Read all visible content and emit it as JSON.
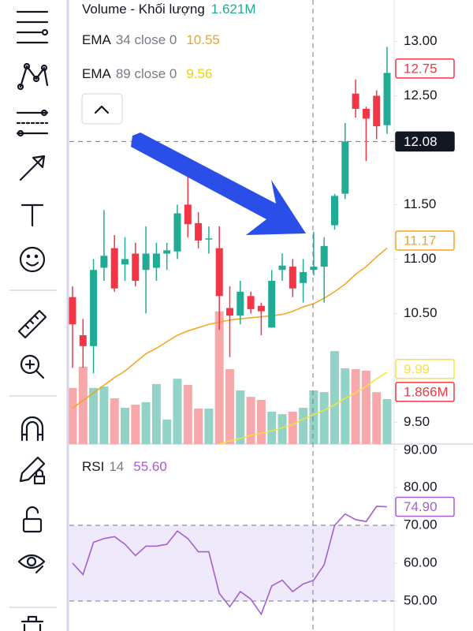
{
  "legend": {
    "volume": {
      "name": "Volume - Khối lượng",
      "value": "1.621M"
    },
    "ema34": {
      "name": "EMA",
      "params": "34 close 0",
      "value": "10.55"
    },
    "ema89": {
      "name": "EMA",
      "params": "89 close 0",
      "value": "9.56"
    },
    "rsi": {
      "name": "RSI",
      "params": "14",
      "value": "55.60"
    }
  },
  "chart_data": {
    "type": "candlestick",
    "up_color": "#22ab94",
    "down_color": "#f23645",
    "volume_up_color": "#93d2c6",
    "volume_down_color": "#f7a8ab",
    "open": [
      10.65,
      10.3,
      10.2,
      10.92,
      11.1,
      10.95,
      11.05,
      10.9,
      10.92,
      11.05,
      11.07,
      11.5,
      11.33,
      11.18,
      11.1,
      10.55,
      10.48,
      10.66,
      10.57,
      10.37,
      10.9,
      10.93,
      10.78,
      10.9,
      10.93,
      11.31,
      11.6,
      12.52,
      12.38,
      12.5,
      12.23
    ],
    "high": [
      10.75,
      10.45,
      11.0,
      11.45,
      11.22,
      11.2,
      11.15,
      11.3,
      11.15,
      11.15,
      11.5,
      11.92,
      11.43,
      11.3,
      11.3,
      10.75,
      10.8,
      10.7,
      10.6,
      10.9,
      11.05,
      11.0,
      11.0,
      11.25,
      11.2,
      11.6,
      12.25,
      12.65,
      12.4,
      12.55,
      12.95
    ],
    "low": [
      10.0,
      10.0,
      9.95,
      10.8,
      10.7,
      10.8,
      10.75,
      10.5,
      10.8,
      10.9,
      11.0,
      11.2,
      11.1,
      11.05,
      10.35,
      10.1,
      10.4,
      10.5,
      10.3,
      10.37,
      10.8,
      10.65,
      10.6,
      10.85,
      10.6,
      11.27,
      11.55,
      12.3,
      11.9,
      12.1,
      12.15
    ],
    "close": [
      10.4,
      10.2,
      10.9,
      11.03,
      10.73,
      11.0,
      10.8,
      11.05,
      11.05,
      11.08,
      11.42,
      11.32,
      11.17,
      11.19,
      10.66,
      10.48,
      10.7,
      10.54,
      10.52,
      10.8,
      10.94,
      10.73,
      10.88,
      10.93,
      11.12,
      11.58,
      12.08,
      12.38,
      12.29,
      12.22,
      12.71
    ],
    "volume": [
      2.01,
      2.77,
      2.01,
      2.06,
      1.64,
      1.3,
      1.41,
      1.5,
      2.15,
      0.88,
      2.34,
      2.12,
      1.27,
      1.27,
      4.75,
      2.68,
      1.92,
      1.69,
      1.58,
      1.16,
      1.07,
      1.16,
      1.3,
      1.92,
      1.86,
      3.33,
      2.71,
      2.68,
      2.63,
      1.86,
      1.61
    ],
    "ema_series": [
      {
        "name": "EMA 34",
        "color": "#f7a21b",
        "values": [
          9.63,
          9.7,
          9.77,
          9.84,
          9.91,
          9.97,
          10.05,
          10.13,
          10.18,
          10.24,
          10.3,
          10.34,
          10.37,
          10.4,
          10.42,
          10.44,
          10.45,
          10.46,
          10.47,
          10.48,
          10.49,
          10.52,
          10.56,
          10.59,
          10.64,
          10.7,
          10.77,
          10.86,
          10.93,
          11.02,
          11.1
        ]
      },
      {
        "name": "EMA 89",
        "color": "#f5e33a",
        "values": [
          null,
          null,
          null,
          null,
          null,
          null,
          null,
          null,
          null,
          null,
          null,
          null,
          null,
          null,
          9.3,
          9.33,
          9.35,
          9.38,
          9.4,
          9.42,
          9.45,
          9.48,
          9.53,
          9.57,
          9.61,
          9.66,
          9.72,
          9.77,
          9.83,
          9.9,
          9.96
        ]
      }
    ],
    "ylim": [
      9.3,
      13.38
    ],
    "yticks": [
      {
        "value": 13,
        "label": "13.00"
      },
      {
        "value": 12.5,
        "label": "12.50"
      },
      {
        "value": 11.5,
        "label": "11.50"
      },
      {
        "value": 11,
        "label": "11.00"
      },
      {
        "value": 10.5,
        "label": "10.50"
      },
      {
        "value": 9.5,
        "label": "9.50"
      }
    ],
    "volume_lim": [
      0,
      15.9
    ],
    "price_markers": [
      {
        "value": 12.75,
        "label": "12.75",
        "color": "#f23645",
        "style": "outline"
      },
      {
        "value": 12.08,
        "label": "12.08",
        "color": "#131722",
        "style": "solid"
      },
      {
        "value": 11.17,
        "label": "11.17",
        "color": "#f7a21b",
        "style": "outline"
      },
      {
        "value": 9.99,
        "label": "9.99",
        "color": "#f5e33a",
        "style": "outline"
      }
    ],
    "volume_marker": {
      "value": 1.866,
      "label": "1.866M",
      "color": "#f23645"
    },
    "rsi": {
      "color": "#a35fd0",
      "values": [
        60,
        57,
        65.5,
        66.5,
        67,
        65,
        62,
        64.5,
        64.5,
        65,
        68.5,
        66.5,
        63,
        63,
        52,
        48.5,
        52.5,
        50.5,
        46.5,
        54,
        55.5,
        52.5,
        54.5,
        55.5,
        59.6,
        70,
        73,
        71.5,
        71,
        75,
        74.9
      ],
      "ylim": [
        42.08,
        91.46
      ],
      "yticks": [
        {
          "value": 90,
          "label": "90.00"
        },
        {
          "value": 80,
          "label": "80.00"
        },
        {
          "value": 70,
          "label": "70.00"
        },
        {
          "value": 60,
          "label": "60.00"
        },
        {
          "value": 50,
          "label": "50.00"
        }
      ],
      "band": [
        50,
        70
      ],
      "marker": {
        "value": 74.9,
        "label": "74.90"
      }
    }
  }
}
